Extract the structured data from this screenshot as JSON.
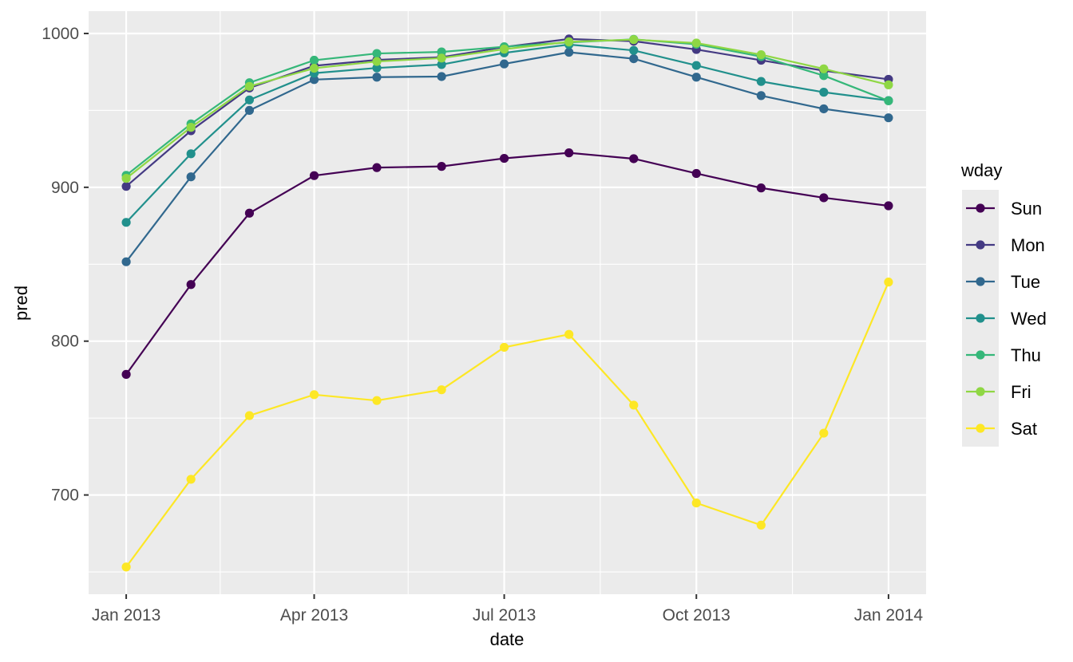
{
  "chart_data": {
    "type": "line",
    "xlabel": "date",
    "ylabel": "pred",
    "x": [
      "2013-01-01",
      "2013-02-01",
      "2013-03-01",
      "2013-04-01",
      "2013-05-01",
      "2013-06-01",
      "2013-07-01",
      "2013-08-01",
      "2013-09-01",
      "2013-10-01",
      "2013-11-01",
      "2013-12-01",
      "2014-01-01"
    ],
    "x_ticks": [
      {
        "date": "2013-01-01",
        "label": "Jan 2013"
      },
      {
        "date": "2013-04-01",
        "label": "Apr 2013"
      },
      {
        "date": "2013-07-01",
        "label": "Jul 2013"
      },
      {
        "date": "2013-10-01",
        "label": "Oct 2013"
      },
      {
        "date": "2014-01-01",
        "label": "Jan 2014"
      }
    ],
    "x_minor_ticks": [
      "2013-02-15",
      "2013-05-16",
      "2013-08-16",
      "2013-11-16"
    ],
    "xlim": [
      "2012-12-14",
      "2014-01-19"
    ],
    "y_ticks": [
      {
        "value": 700,
        "label": "700"
      },
      {
        "value": 800,
        "label": "800"
      },
      {
        "value": 900,
        "label": "900"
      },
      {
        "value": 1000,
        "label": "1000"
      }
    ],
    "y_minor_ticks": [
      650,
      750,
      850,
      950
    ],
    "ylim": [
      635.5,
      1014.5
    ],
    "grid": true,
    "legend": {
      "title": "wday",
      "position": "right"
    },
    "series": [
      {
        "name": "Sun",
        "color": "#440154",
        "values": [
          778.4,
          836.8,
          883.2,
          907.6,
          912.8,
          913.6,
          918.8,
          922.4,
          918.6,
          909.0,
          899.6,
          893.2,
          888.0
        ]
      },
      {
        "name": "Mon",
        "color": "#443A83",
        "values": [
          900.6,
          936.8,
          964.6,
          979.0,
          982.8,
          984.6,
          991.2,
          996.4,
          995.0,
          989.6,
          982.6,
          975.8,
          970.2
        ]
      },
      {
        "name": "Tue",
        "color": "#31688E",
        "values": [
          851.6,
          906.8,
          950.0,
          970.0,
          971.6,
          972.0,
          980.2,
          987.8,
          983.6,
          971.6,
          959.6,
          951.0,
          945.2
        ]
      },
      {
        "name": "Wed",
        "color": "#21908C",
        "values": [
          877.2,
          921.8,
          956.8,
          974.2,
          977.6,
          979.8,
          987.4,
          992.8,
          989.0,
          979.2,
          968.8,
          961.8,
          956.4
        ]
      },
      {
        "name": "Thu",
        "color": "#35B779",
        "values": [
          907.8,
          941.2,
          968.0,
          982.6,
          987.0,
          988.0,
          991.4,
          994.2,
          996.2,
          993.0,
          985.0,
          972.6,
          956.2
        ]
      },
      {
        "name": "Fri",
        "color": "#8FD744",
        "values": [
          905.8,
          939.0,
          965.6,
          977.4,
          981.8,
          984.0,
          989.8,
          994.6,
          996.0,
          993.8,
          986.2,
          977.0,
          966.6
        ]
      },
      {
        "name": "Sat",
        "color": "#FDE725",
        "values": [
          653.2,
          710.2,
          751.6,
          765.2,
          761.4,
          768.4,
          796.0,
          804.4,
          758.4,
          694.8,
          680.4,
          740.2,
          838.4
        ]
      }
    ]
  }
}
